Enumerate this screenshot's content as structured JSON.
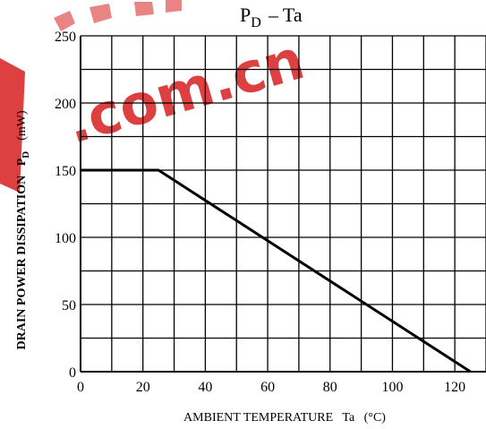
{
  "chart_data": {
    "type": "line",
    "title_main": "P",
    "title_sub": "D",
    "title_rest": "– Ta",
    "xlabel": "AMBIENT TEMPERATURE   Ta   (°C)",
    "ylabel_main": "DRAIN POWER DISSIPATION   P",
    "ylabel_sub": "D",
    "ylabel_unit": "(mW)",
    "xlim": [
      0,
      130
    ],
    "ylim": [
      0,
      250
    ],
    "x_ticks": [
      0,
      20,
      40,
      60,
      80,
      100,
      120
    ],
    "y_ticks": [
      0,
      50,
      100,
      150,
      200,
      250
    ],
    "x_tick_labels": [
      "0",
      "20",
      "40",
      "60",
      "80",
      "100",
      "120"
    ],
    "y_tick_labels": [
      "0",
      "50",
      "100",
      "150",
      "200",
      "250"
    ],
    "grid": true,
    "series": [
      {
        "x": [
          0,
          25,
          125
        ],
        "y": [
          150,
          150,
          0
        ]
      }
    ],
    "watermark": ".com.cn"
  }
}
